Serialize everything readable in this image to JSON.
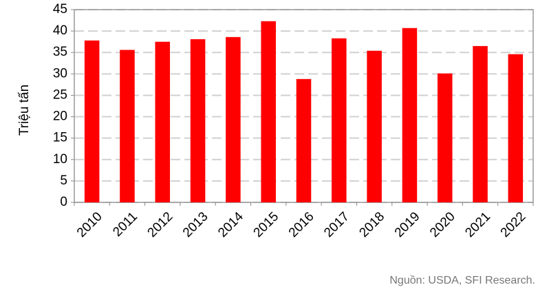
{
  "chart_data": {
    "type": "bar",
    "y_label": "Triệu tấn",
    "source": "Nguồn: USDA, SFI Research.",
    "categories": [
      "2010",
      "2011",
      "2012",
      "2013",
      "2014",
      "2015",
      "2016",
      "2017",
      "2018",
      "2019",
      "2020",
      "2021",
      "2022"
    ],
    "values": [
      37.8,
      35.6,
      37.5,
      38.1,
      38.6,
      42.3,
      28.8,
      38.3,
      35.4,
      40.7,
      30.1,
      36.5,
      34.6
    ],
    "color": "#ff0000",
    "ylim": [
      0,
      45
    ],
    "yticks": [
      0,
      5,
      10,
      15,
      20,
      25,
      30,
      35,
      40,
      45
    ],
    "grid": true
  }
}
